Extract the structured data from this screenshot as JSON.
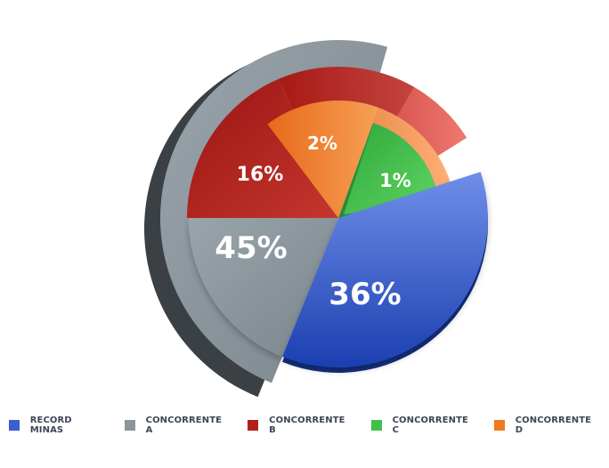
{
  "chart_data": {
    "type": "pie",
    "categories": [
      "RECORD MINAS",
      "CONCORRENTE A",
      "CONCORRENTE B",
      "CONCORRENTE C",
      "CONCORRENTE D"
    ],
    "values": [
      36,
      45,
      16,
      1,
      2
    ],
    "labels": [
      "36%",
      "45%",
      "16%",
      "1%",
      "2%"
    ],
    "colors": [
      "#3a5fd0",
      "#8a949b",
      "#b3201c",
      "#3fc24a",
      "#ef7a22"
    ],
    "legend": "bottom"
  }
}
